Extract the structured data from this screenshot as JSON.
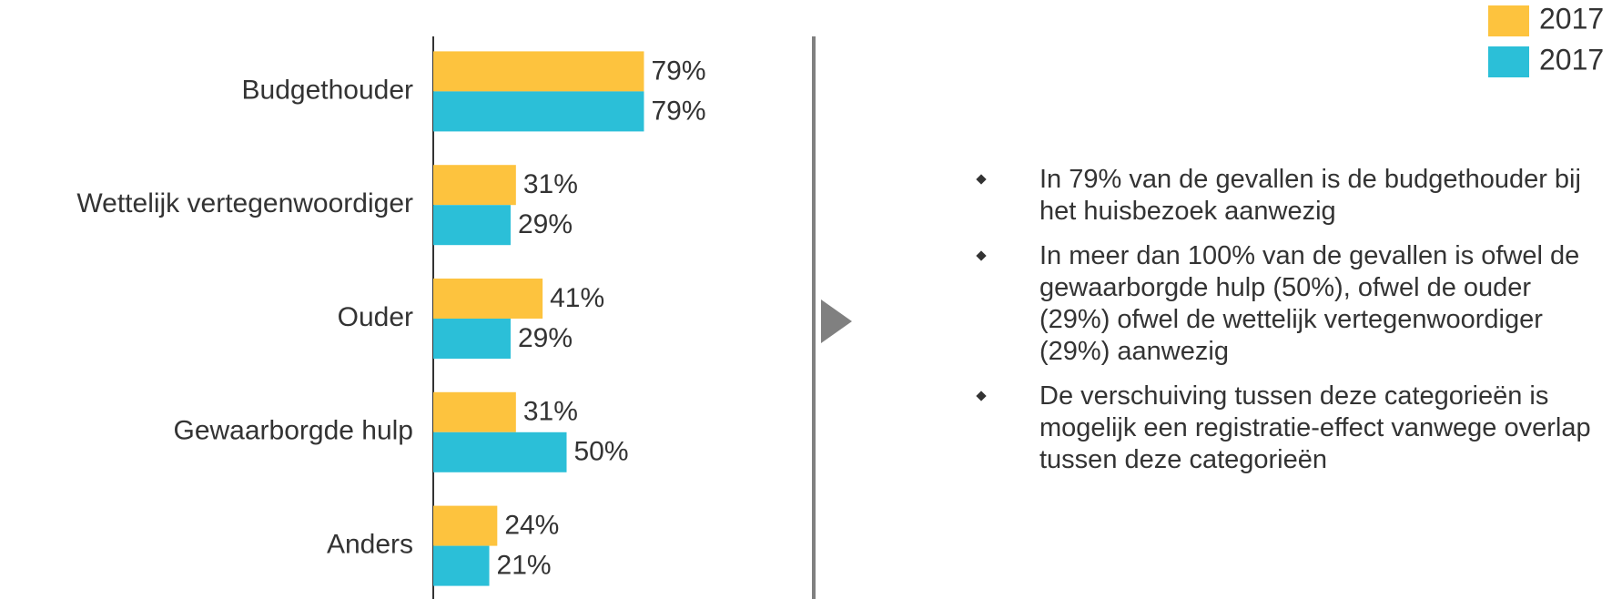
{
  "chart_data": {
    "type": "bar",
    "orientation": "horizontal",
    "categories": [
      "Budgethouder",
      "Wettelijk vertegenwoordiger",
      "Ouder",
      "Gewaarborgde hulp",
      "Anders"
    ],
    "series": [
      {
        "name": "2017",
        "color": "#fdc33e",
        "values": [
          79,
          31,
          41,
          31,
          24
        ],
        "value_labels": [
          "79%",
          "31%",
          "41%",
          "31%",
          "24%"
        ]
      },
      {
        "name": "2017",
        "color": "#2bbfd8",
        "values": [
          79,
          29,
          29,
          50,
          21
        ],
        "value_labels": [
          "79%",
          "29%",
          "29%",
          "50%",
          "21%"
        ]
      }
    ],
    "legend": "top-right"
  },
  "bullets": [
    "In 79% van de gevallen is de budgethouder bij het huisbezoek aanwezig",
    "In meer dan 100% van de gevallen is ofwel de gewaarborgde hulp (50%), ofwel de ouder (29%) ofwel de wettelijk vertegenwoordiger (29%) aanwezig",
    "De verschuiving tussen deze categorieën is mogelijk een registratie-effect vanwege overlap tussen deze categorieën"
  ]
}
